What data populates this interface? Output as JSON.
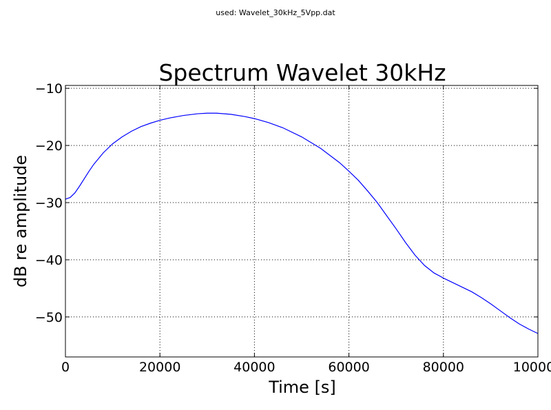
{
  "figure": {
    "suptitle": "used: Wavelet_30kHz_5Vpp.dat"
  },
  "chart_data": {
    "type": "line",
    "title": "Spectrum Wavelet 30kHz",
    "xlabel": "Time [s]",
    "ylabel": "dB re amplitude",
    "xlim": [
      0,
      100000
    ],
    "ylim": [
      -57,
      -9.5
    ],
    "grid": true,
    "xticks": [
      0,
      20000,
      40000,
      60000,
      80000,
      100000
    ],
    "xtick_labels": [
      "0",
      "20000",
      "40000",
      "60000",
      "80000",
      "100000"
    ],
    "yticks": [
      -10,
      -20,
      -30,
      -40,
      -50
    ],
    "ytick_labels": [
      "−10",
      "−20",
      "−30",
      "−40",
      "−50"
    ],
    "series": [
      {
        "color": "#0000ff",
        "x": [
          0,
          1000,
          2000,
          3000,
          4000,
          5000,
          6000,
          8000,
          10000,
          12000,
          14000,
          16000,
          18000,
          20000,
          22000,
          25000,
          28000,
          30000,
          32000,
          35000,
          38000,
          40000,
          43000,
          46000,
          50000,
          54000,
          58000,
          60000,
          62000,
          64000,
          66000,
          68000,
          70000,
          72000,
          74000,
          76000,
          78000,
          80000,
          82000,
          84000,
          86000,
          88000,
          90000,
          92000,
          94000,
          96000,
          98000,
          100000
        ],
        "y": [
          -29.4,
          -29.1,
          -28.3,
          -27.1,
          -25.8,
          -24.5,
          -23.3,
          -21.3,
          -19.7,
          -18.5,
          -17.5,
          -16.7,
          -16.1,
          -15.6,
          -15.2,
          -14.75,
          -14.45,
          -14.35,
          -14.35,
          -14.55,
          -14.95,
          -15.3,
          -16.0,
          -16.9,
          -18.5,
          -20.5,
          -23.0,
          -24.5,
          -26.1,
          -28.0,
          -30.0,
          -32.3,
          -34.6,
          -37.0,
          -39.2,
          -41.0,
          -42.3,
          -43.2,
          -44.0,
          -44.8,
          -45.6,
          -46.6,
          -47.7,
          -48.9,
          -50.1,
          -51.2,
          -52.1,
          -52.9
        ]
      }
    ]
  }
}
